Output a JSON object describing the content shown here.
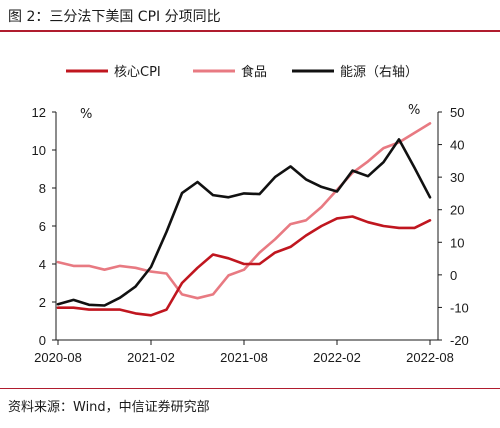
{
  "figure": {
    "title": "图 2：三分法下美国 CPI 分项同比",
    "source": "资料来源：Wind，中信证券研究部"
  },
  "colors": {
    "core": "#c0161f",
    "food": "#e87a82",
    "energy": "#111111",
    "accent": "#b01c2e"
  },
  "chart_data": {
    "type": "line",
    "left_unit": "%",
    "right_unit": "%",
    "x_tick_labels": [
      "2020-08",
      "2021-02",
      "2021-08",
      "2022-02",
      "2022-08"
    ],
    "x": [
      "2020-08",
      "2020-09",
      "2020-10",
      "2020-11",
      "2020-12",
      "2021-01",
      "2021-02",
      "2021-03",
      "2021-04",
      "2021-05",
      "2021-06",
      "2021-07",
      "2021-08",
      "2021-09",
      "2021-10",
      "2021-11",
      "2021-12",
      "2022-01",
      "2022-02",
      "2022-03",
      "2022-04",
      "2022-05",
      "2022-06",
      "2022-07",
      "2022-08"
    ],
    "ylim_left": [
      0,
      12
    ],
    "yticks_left": [
      0,
      2,
      4,
      6,
      8,
      10,
      12
    ],
    "ylim_right": [
      -20,
      50
    ],
    "yticks_right": [
      -20,
      -10,
      0,
      10,
      20,
      30,
      40,
      50
    ],
    "series": [
      {
        "name": "核心CPI",
        "axis": "left",
        "values": [
          1.7,
          1.7,
          1.6,
          1.6,
          1.6,
          1.4,
          1.3,
          1.6,
          3.0,
          3.8,
          4.5,
          4.3,
          4.0,
          4.0,
          4.6,
          4.9,
          5.5,
          6.0,
          6.4,
          6.5,
          6.2,
          6.0,
          5.9,
          5.9,
          6.3
        ]
      },
      {
        "name": "食品",
        "axis": "left",
        "values": [
          4.1,
          3.9,
          3.9,
          3.7,
          3.9,
          3.8,
          3.6,
          3.5,
          2.4,
          2.2,
          2.4,
          3.4,
          3.7,
          4.6,
          5.3,
          6.1,
          6.3,
          7.0,
          7.9,
          8.8,
          9.4,
          10.1,
          10.4,
          10.9,
          11.4
        ]
      },
      {
        "name": "能源（右轴）",
        "axis": "right",
        "values": [
          -9.0,
          -7.7,
          -9.2,
          -9.4,
          -7.0,
          -3.6,
          2.4,
          13.2,
          25.1,
          28.5,
          24.5,
          23.8,
          25.0,
          24.8,
          30.0,
          33.3,
          29.3,
          27.0,
          25.6,
          32.0,
          30.3,
          34.6,
          41.6,
          32.9,
          23.8
        ]
      }
    ]
  }
}
